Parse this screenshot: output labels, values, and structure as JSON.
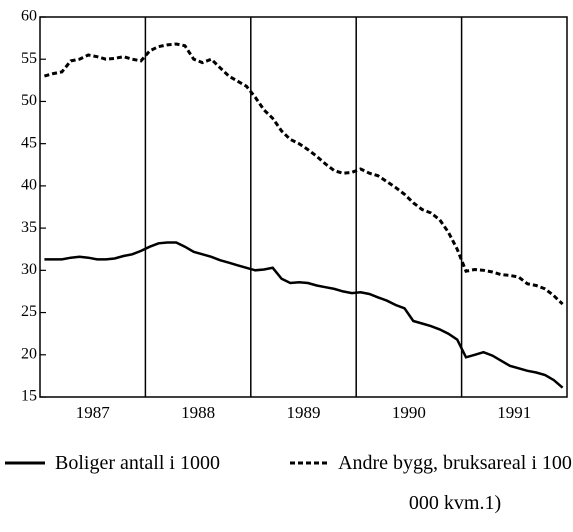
{
  "chart_data": {
    "type": "line",
    "x": [
      1987.042,
      1987.125,
      1987.208,
      1987.292,
      1987.375,
      1987.458,
      1987.542,
      1987.625,
      1987.708,
      1987.792,
      1987.875,
      1987.958,
      1988.042,
      1988.125,
      1988.208,
      1988.292,
      1988.375,
      1988.458,
      1988.542,
      1988.625,
      1988.708,
      1988.792,
      1988.875,
      1988.958,
      1989.042,
      1989.125,
      1989.208,
      1989.292,
      1989.375,
      1989.458,
      1989.542,
      1989.625,
      1989.708,
      1989.792,
      1989.875,
      1989.958,
      1990.042,
      1990.125,
      1990.208,
      1990.292,
      1990.375,
      1990.458,
      1990.542,
      1990.625,
      1990.708,
      1990.792,
      1990.875,
      1990.958,
      1991.042,
      1991.125,
      1991.208,
      1991.292,
      1991.375,
      1991.458,
      1991.542,
      1991.625,
      1991.708,
      1991.792,
      1991.875,
      1991.958
    ],
    "series": [
      {
        "name": "Boliger antall i 1000",
        "color": "#000000",
        "style": "solid",
        "values": [
          31.3,
          31.3,
          31.3,
          31.5,
          31.6,
          31.5,
          31.3,
          31.3,
          31.4,
          31.7,
          31.9,
          32.3,
          32.8,
          33.2,
          33.3,
          33.3,
          32.8,
          32.2,
          31.9,
          31.6,
          31.2,
          30.9,
          30.6,
          30.3,
          30.0,
          30.1,
          30.3,
          29.0,
          28.5,
          28.6,
          28.5,
          28.2,
          28.0,
          27.8,
          27.5,
          27.3,
          27.4,
          27.2,
          26.8,
          26.4,
          25.9,
          25.5,
          24.0,
          23.7,
          23.4,
          23.0,
          22.5,
          21.8,
          19.7,
          20.0,
          20.3,
          19.9,
          19.3,
          18.7,
          18.4,
          18.1,
          17.9,
          17.6,
          17.0,
          16.1
        ]
      },
      {
        "name": "Andre bygg, bruksareal i 100 000  kvm.1)",
        "color": "#000000",
        "style": "dashed",
        "values": [
          53.0,
          53.3,
          53.5,
          54.8,
          55.0,
          55.5,
          55.3,
          55.0,
          55.1,
          55.3,
          55.0,
          54.8,
          56.0,
          56.5,
          56.7,
          56.8,
          56.6,
          55.0,
          54.6,
          55.0,
          54.0,
          53.0,
          52.4,
          51.8,
          50.5,
          49.0,
          48.0,
          46.5,
          45.5,
          45.0,
          44.3,
          43.5,
          42.6,
          41.8,
          41.5,
          41.6,
          42.0,
          41.5,
          41.2,
          40.5,
          39.8,
          39.0,
          38.0,
          37.2,
          36.8,
          36.0,
          34.5,
          32.5,
          29.9,
          30.1,
          30.0,
          29.8,
          29.5,
          29.4,
          29.2,
          28.4,
          28.2,
          27.8,
          27.0,
          26.0
        ]
      }
    ],
    "xlim": [
      1987,
      1992
    ],
    "xticks": [
      {
        "value": 1987.5,
        "label": "1987"
      },
      {
        "value": 1988.5,
        "label": "1988"
      },
      {
        "value": 1989.5,
        "label": "1989"
      },
      {
        "value": 1990.5,
        "label": "1990"
      },
      {
        "value": 1991.5,
        "label": "1991"
      }
    ],
    "vlines": [
      1988,
      1989,
      1990,
      1991
    ],
    "ylim": [
      15,
      60
    ],
    "yticks": [
      15,
      20,
      25,
      30,
      35,
      40,
      45,
      50,
      55,
      60
    ],
    "legend": "bottom"
  }
}
